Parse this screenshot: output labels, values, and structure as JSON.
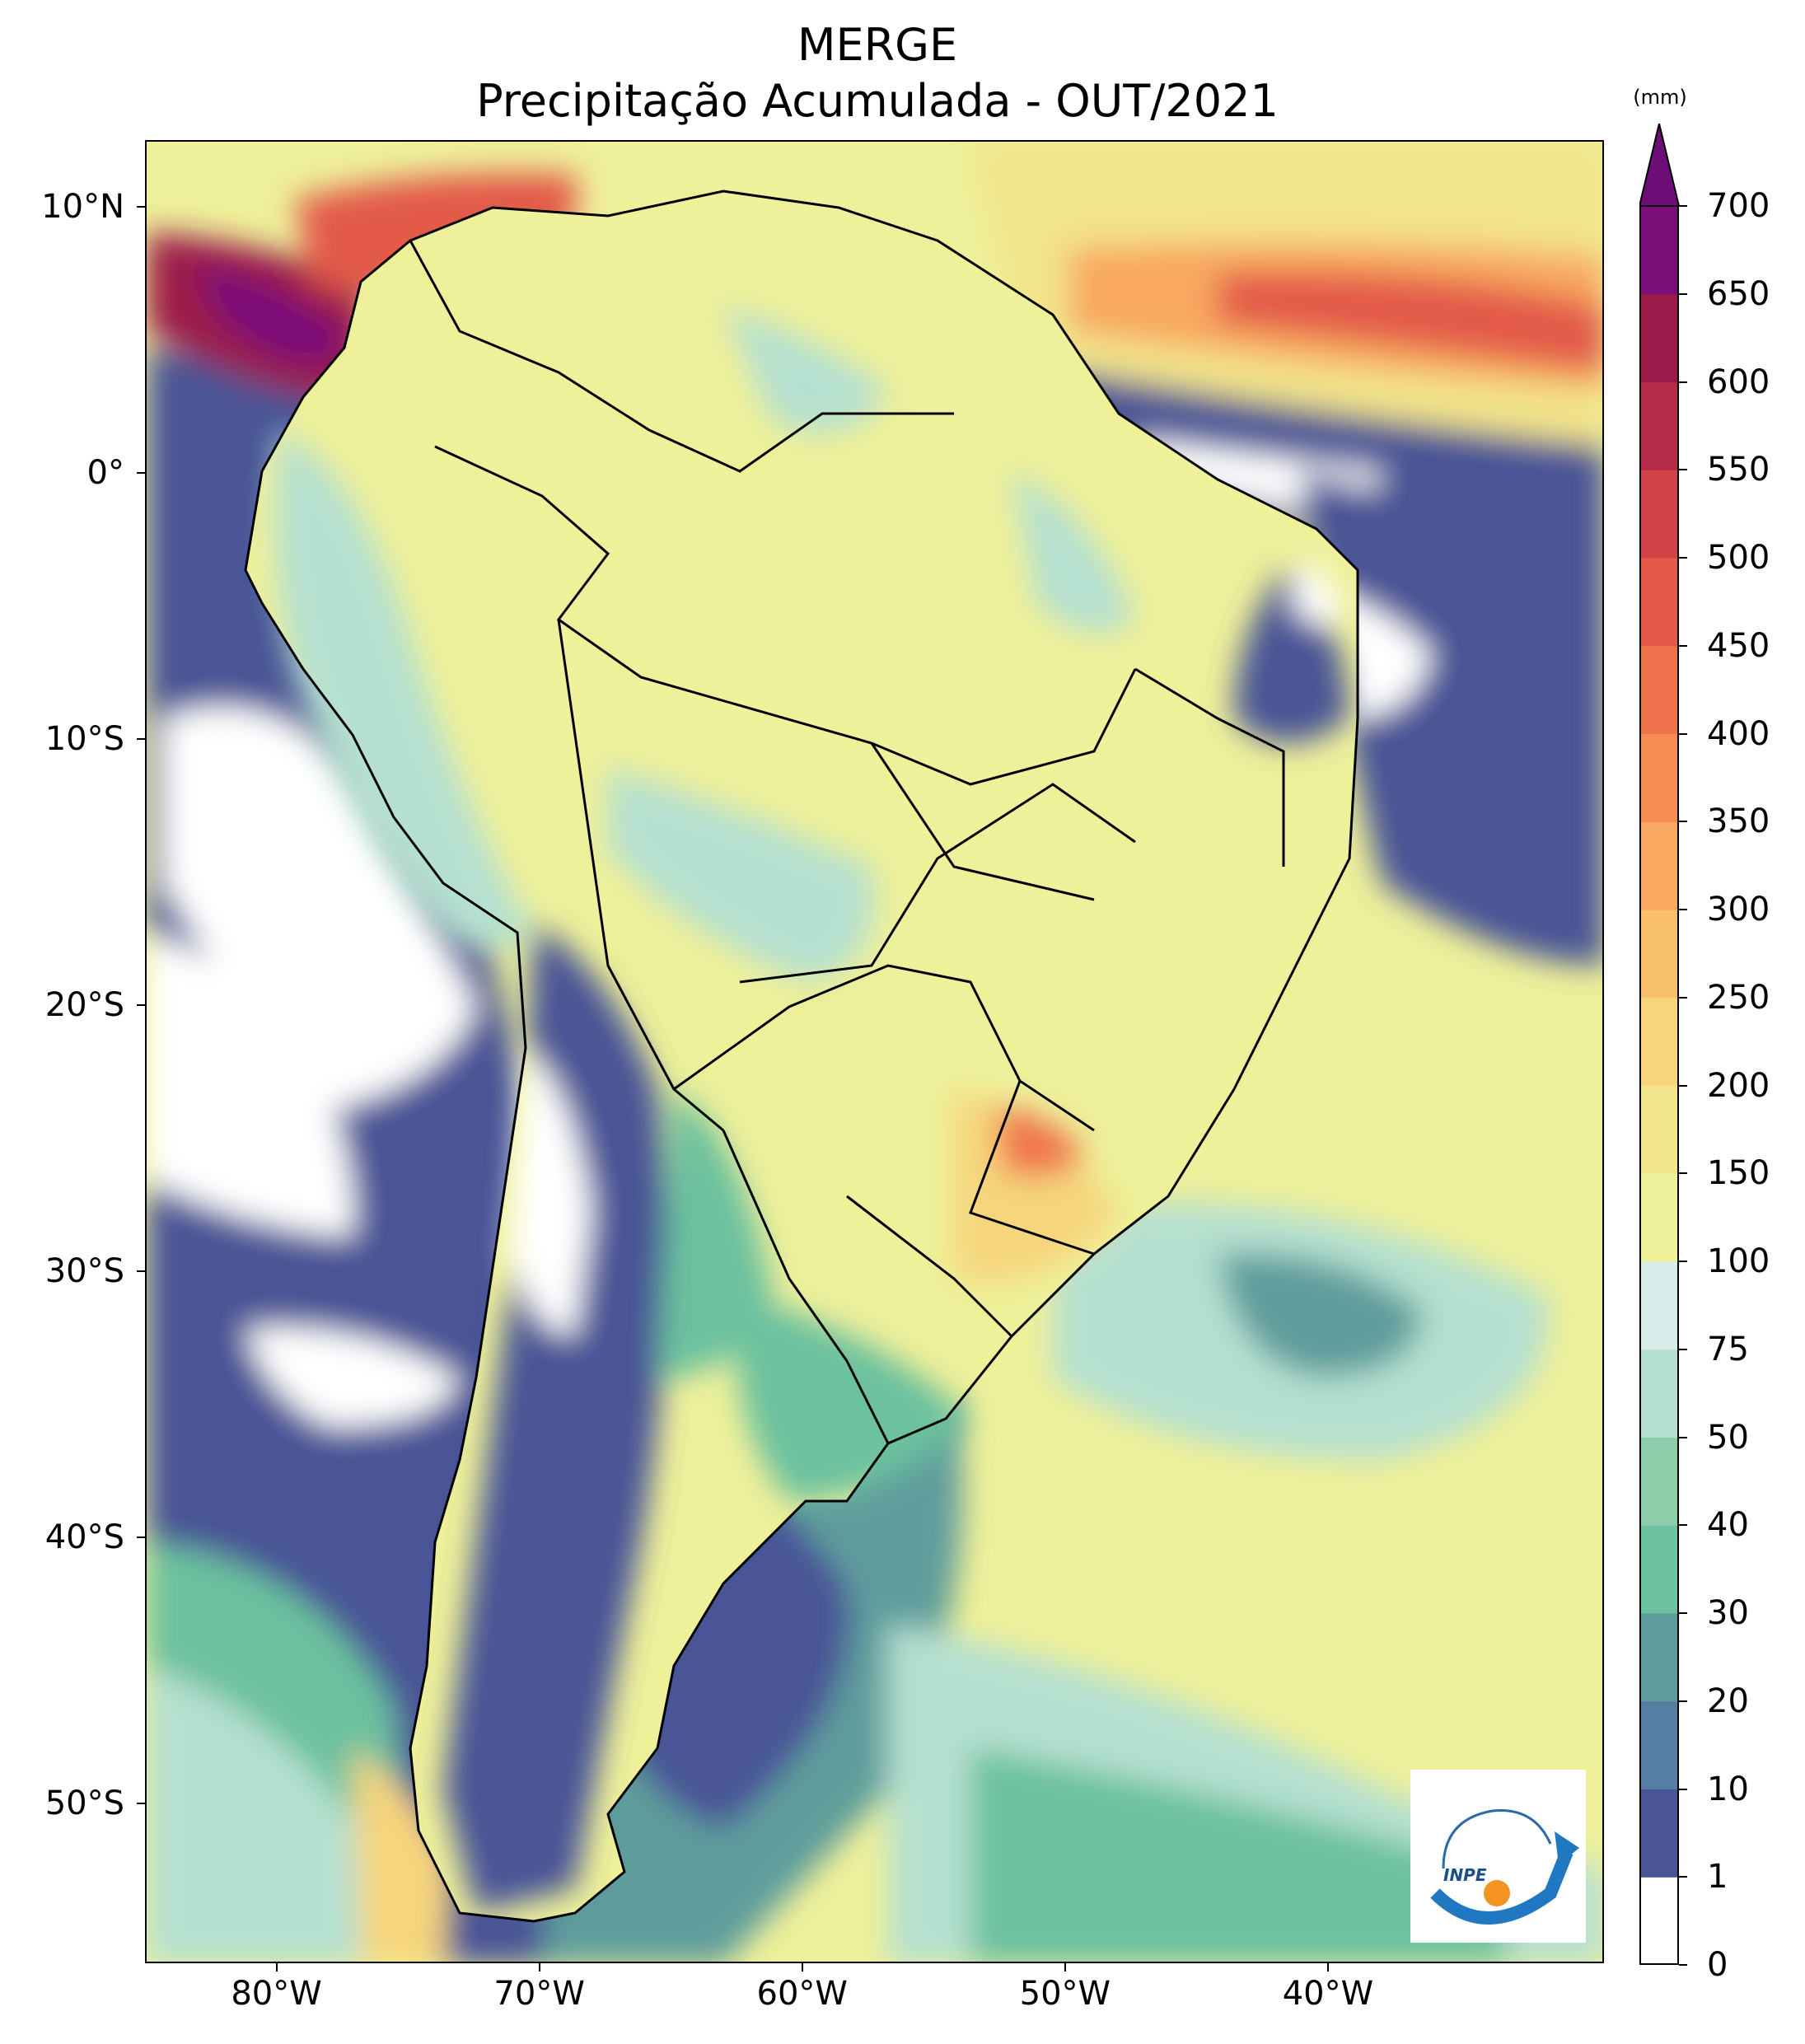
{
  "title": {
    "line1": "MERGE",
    "line2": "Precipitação Acumulada - OUT/2021"
  },
  "map": {
    "region": "South America",
    "variable": "accumulated precipitation",
    "lat_range": [
      -56,
      12.5
    ],
    "lon_range": [
      -85,
      -29.5
    ],
    "lat_ticks": [
      {
        "value": 10,
        "label": "10°N"
      },
      {
        "value": 0,
        "label": "0°"
      },
      {
        "value": -10,
        "label": "10°S"
      },
      {
        "value": -20,
        "label": "20°S"
      },
      {
        "value": -30,
        "label": "30°S"
      },
      {
        "value": -40,
        "label": "40°S"
      },
      {
        "value": -50,
        "label": "50°S"
      }
    ],
    "lon_ticks": [
      {
        "value": -80,
        "label": "80°W"
      },
      {
        "value": -70,
        "label": "70°W"
      },
      {
        "value": -60,
        "label": "60°W"
      },
      {
        "value": -50,
        "label": "50°W"
      },
      {
        "value": -40,
        "label": "40°W"
      }
    ]
  },
  "colorbar": {
    "unit": "(mm)",
    "extend": "max",
    "levels": [
      "0",
      "1",
      "10",
      "20",
      "30",
      "40",
      "50",
      "75",
      "100",
      "150",
      "200",
      "250",
      "300",
      "350",
      "400",
      "450",
      "500",
      "550",
      "600",
      "650",
      "700"
    ],
    "colors": [
      "#ffffff",
      "#4a5596",
      "#557ea2",
      "#5f9d9c",
      "#6cc19f",
      "#8dcfaa",
      "#b5e0d0",
      "#d8ece9",
      "#eef09a",
      "#f2e48a",
      "#f6d57b",
      "#f8c06b",
      "#f8a860",
      "#f58d55",
      "#ef734c",
      "#e35a4a",
      "#cf4349",
      "#b52c49",
      "#9c1a4a",
      "#7a0f7a"
    ],
    "extend_color": "#6d0d76"
  },
  "logo": {
    "text": "INPE"
  }
}
